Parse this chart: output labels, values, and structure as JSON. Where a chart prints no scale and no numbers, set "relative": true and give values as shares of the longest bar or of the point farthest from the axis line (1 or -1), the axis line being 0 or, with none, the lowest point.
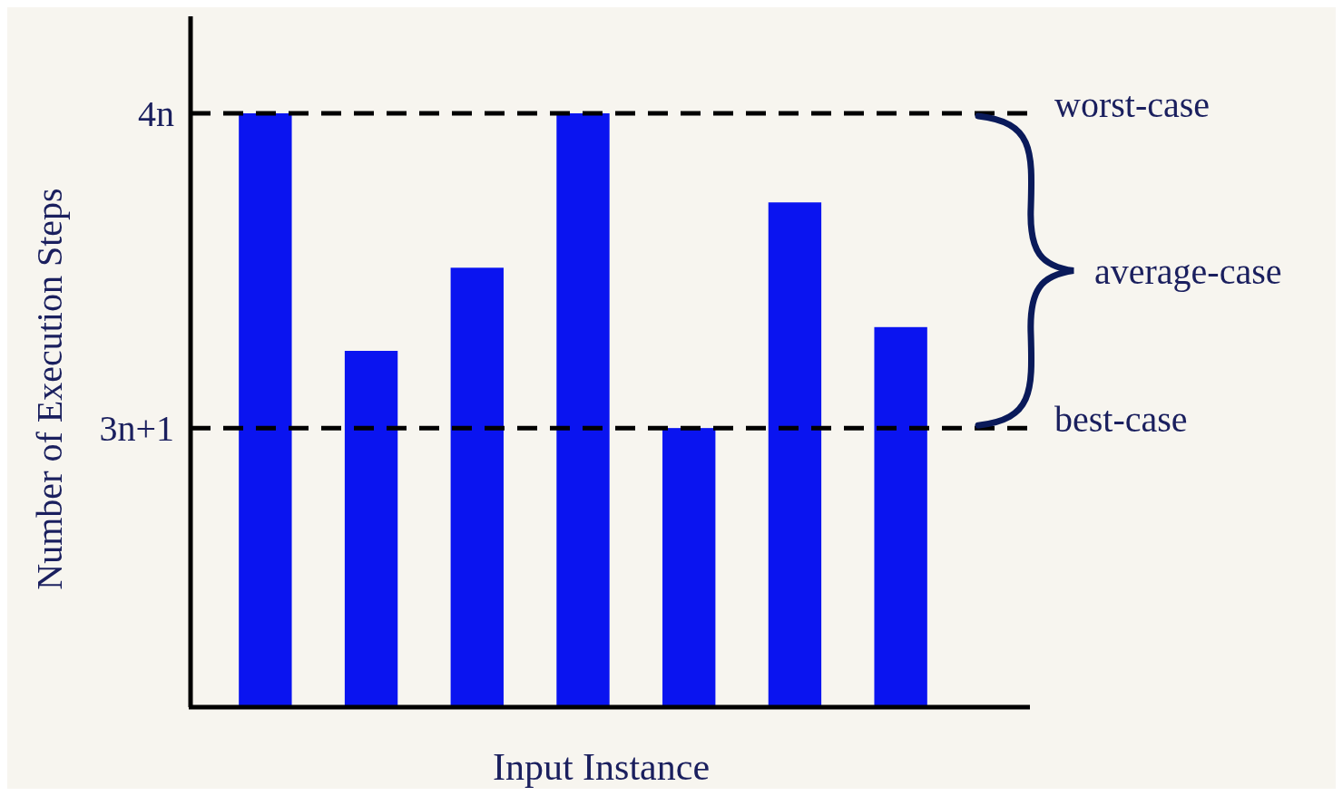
{
  "chart_data": {
    "type": "bar",
    "relative": true,
    "xlabel": "Input Instance",
    "ylabel": "Number of Execution Steps",
    "categories": [
      null,
      null,
      null,
      null,
      null,
      null,
      null
    ],
    "values": [
      1,
      0.6,
      0.74,
      1,
      0.47,
      0.85,
      0.64
    ],
    "color": "#0a14f0",
    "ref_lines": [
      {
        "axis": "y",
        "value": 1,
        "label": "4n",
        "color": "#000000",
        "line_style": "dashed"
      },
      {
        "axis": "y",
        "value": 0.47,
        "label": "3n+1",
        "color": "#000000",
        "line_style": "dashed"
      }
    ],
    "annotations": [
      "worst-case",
      "best-case",
      "average-case"
    ]
  }
}
